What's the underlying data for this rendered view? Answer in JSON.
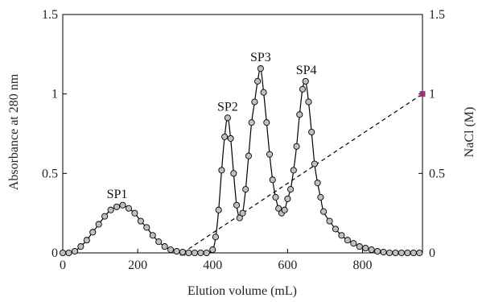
{
  "chart_data": {
    "type": "line",
    "title": "",
    "xlabel": "Elution volume (mL)",
    "ylabel_left": "Absorbance at 280 nm",
    "ylabel_right": "NaCl (M)",
    "xlim": [
      0,
      960
    ],
    "ylim_left": [
      0,
      1.5
    ],
    "ylim_right": [
      0,
      1.5
    ],
    "x_ticks": [
      "0",
      "200",
      "400",
      "600",
      "800"
    ],
    "x_tick_values": [
      0,
      200,
      400,
      600,
      800
    ],
    "y_left_ticks": [
      "0",
      "0.5",
      "1",
      "1.5"
    ],
    "y_left_tick_values": [
      0,
      0.5,
      1,
      1.5
    ],
    "y_right_ticks": [
      "0",
      "0.5",
      "1",
      "1.5"
    ],
    "y_right_tick_values": [
      0,
      0.5,
      1,
      1.5
    ],
    "grid": false,
    "colors": {
      "marker_fill": "#c0c0c0",
      "marker_stroke": "#000000",
      "line": "#000000",
      "gradient_endpoint": "#a0307a"
    },
    "absorbance": {
      "x": [
        0,
        16,
        32,
        48,
        64,
        80,
        96,
        112,
        128,
        144,
        160,
        176,
        192,
        208,
        224,
        240,
        256,
        272,
        288,
        304,
        320,
        336,
        352,
        368,
        384,
        400,
        408,
        416,
        424,
        432,
        440,
        448,
        456,
        464,
        472,
        480,
        488,
        496,
        504,
        512,
        520,
        528,
        536,
        544,
        552,
        560,
        568,
        576,
        584,
        592,
        600,
        608,
        616,
        624,
        632,
        640,
        648,
        656,
        664,
        672,
        680,
        688,
        696,
        712,
        728,
        744,
        760,
        776,
        792,
        808,
        824,
        840,
        856,
        872,
        888,
        904,
        920,
        936,
        952
      ],
      "y": [
        0,
        0,
        0.01,
        0.04,
        0.08,
        0.13,
        0.18,
        0.23,
        0.27,
        0.29,
        0.3,
        0.28,
        0.25,
        0.2,
        0.16,
        0.11,
        0.07,
        0.04,
        0.02,
        0.01,
        0.005,
        0,
        0,
        0,
        0,
        0.02,
        0.1,
        0.27,
        0.52,
        0.73,
        0.85,
        0.72,
        0.5,
        0.3,
        0.22,
        0.25,
        0.4,
        0.61,
        0.82,
        0.95,
        1.08,
        1.16,
        1.01,
        0.82,
        0.62,
        0.46,
        0.35,
        0.28,
        0.25,
        0.27,
        0.34,
        0.4,
        0.52,
        0.67,
        0.87,
        1.03,
        1.08,
        0.95,
        0.76,
        0.56,
        0.44,
        0.35,
        0.26,
        0.2,
        0.15,
        0.11,
        0.08,
        0.06,
        0.04,
        0.03,
        0.02,
        0.01,
        0.005,
        0,
        0,
        0,
        0,
        0,
        0
      ]
    },
    "nacl_gradient": {
      "x": [
        320,
        960
      ],
      "y": [
        0,
        1
      ]
    },
    "annotations": [
      {
        "text": "SP1",
        "x": 145,
        "y": 0.3
      },
      {
        "text": "SP2",
        "x": 440,
        "y": 0.85
      },
      {
        "text": "SP3",
        "x": 528,
        "y": 1.16
      },
      {
        "text": "SP4",
        "x": 650,
        "y": 1.08
      }
    ]
  }
}
